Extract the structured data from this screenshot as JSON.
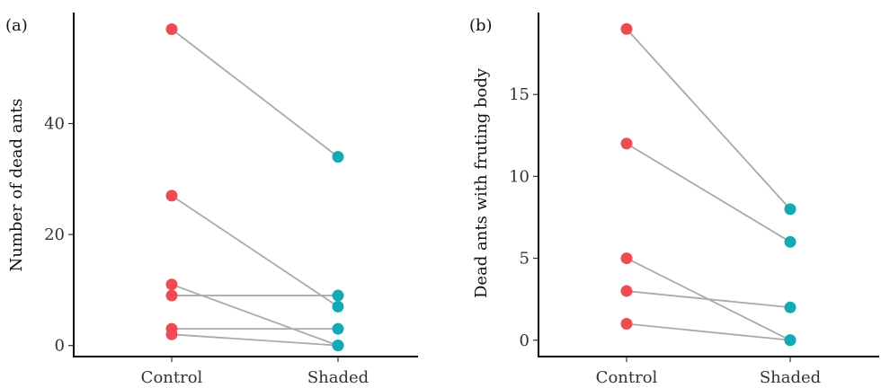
{
  "colors": {
    "control": "#EE4B52",
    "shaded": "#14AAB3",
    "line": "#AAAAAA"
  },
  "chart_data": [
    {
      "type": "scatter",
      "panel_label": "(a)",
      "ylabel": "Number of dead ants",
      "categories": [
        "Control",
        "Shaded"
      ],
      "ylim": [
        -2,
        60
      ],
      "yticks": [
        0,
        20,
        40
      ],
      "grid": false,
      "pairs": [
        {
          "control": 57,
          "shaded": 34
        },
        {
          "control": 27,
          "shaded": 7
        },
        {
          "control": 11,
          "shaded": 0
        },
        {
          "control": 9,
          "shaded": 9
        },
        {
          "control": 3,
          "shaded": 3
        },
        {
          "control": 2,
          "shaded": 0
        }
      ]
    },
    {
      "type": "scatter",
      "panel_label": "(b)",
      "ylabel": "Dead ants with fruting body",
      "categories": [
        "Control",
        "Shaded"
      ],
      "ylim": [
        -1,
        20
      ],
      "yticks": [
        0,
        5,
        10,
        15
      ],
      "grid": false,
      "pairs": [
        {
          "control": 19,
          "shaded": 8
        },
        {
          "control": 12,
          "shaded": 6
        },
        {
          "control": 5,
          "shaded": 0
        },
        {
          "control": 3,
          "shaded": 2
        },
        {
          "control": 1,
          "shaded": 0
        }
      ]
    }
  ]
}
